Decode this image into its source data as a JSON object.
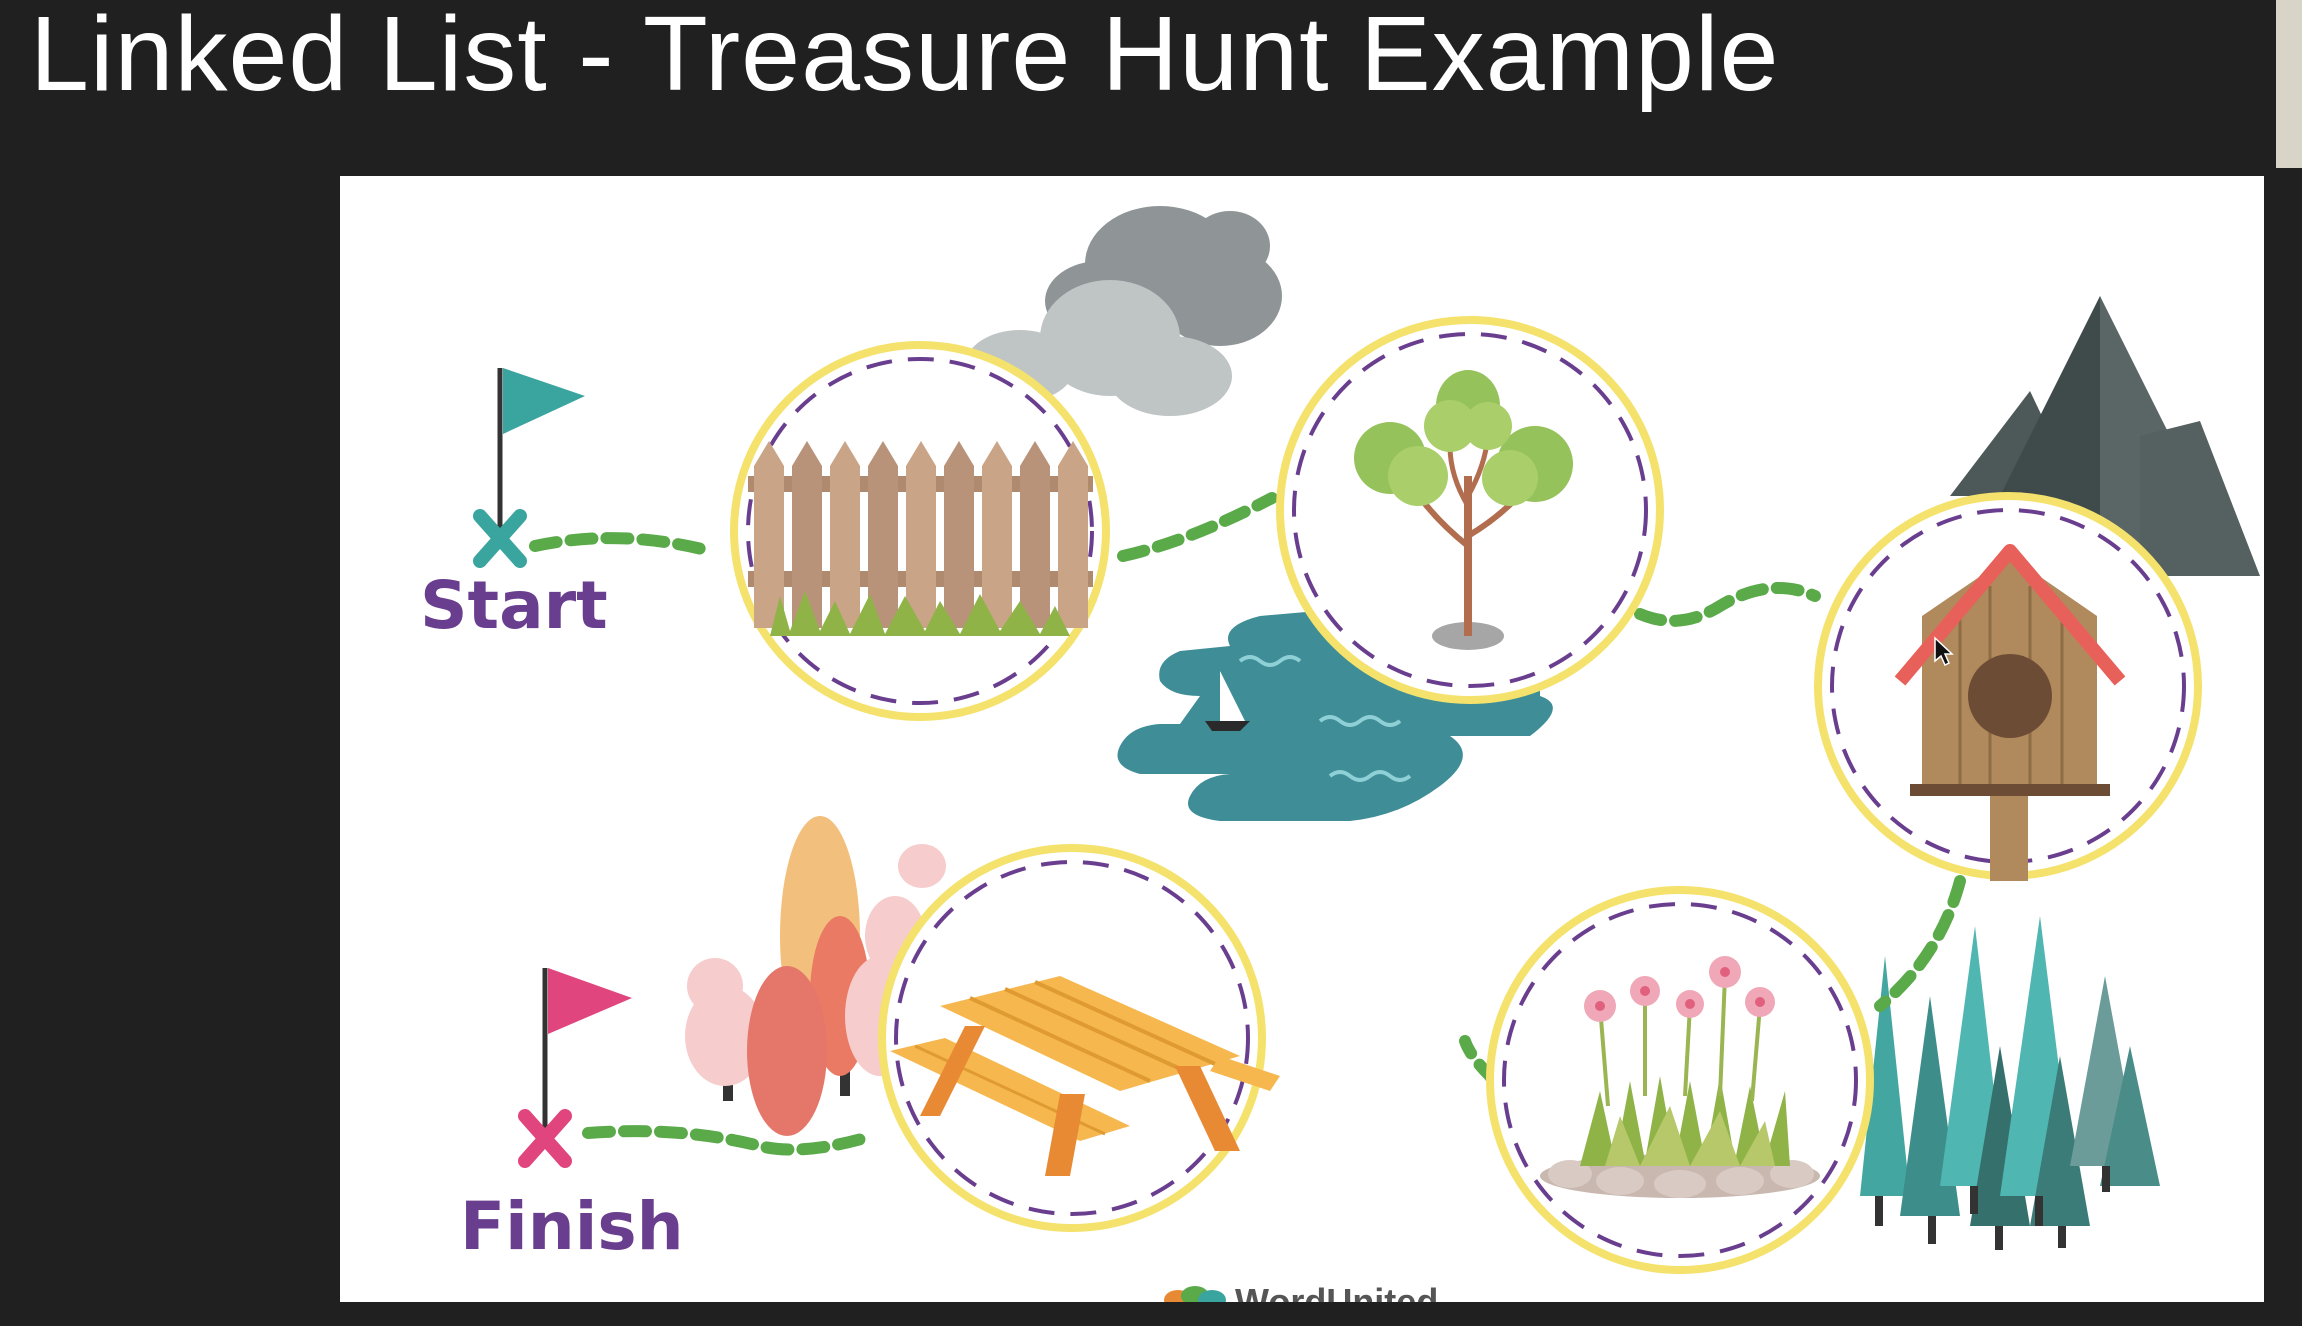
{
  "slide": {
    "title": "Linked List - Treasure Hunt Example"
  },
  "diagram": {
    "start_label": "Start",
    "finish_label": "Finish",
    "logo_text": "WordUnited",
    "nodes": [
      {
        "name": "fence",
        "icon": "fence-icon"
      },
      {
        "name": "tree",
        "icon": "tree-icon"
      },
      {
        "name": "birdhouse",
        "icon": "birdhouse-icon"
      },
      {
        "name": "flowers",
        "icon": "flowers-icon"
      },
      {
        "name": "picnic-table",
        "icon": "picnic-table-icon"
      }
    ],
    "colors": {
      "path": "#5aaa4a",
      "node_ring": "#f4e26c",
      "node_dash": "#6a3e8e",
      "start_flag": "#3aa49e",
      "finish_flag": "#e0457e",
      "label": "#6a3e8e"
    }
  }
}
